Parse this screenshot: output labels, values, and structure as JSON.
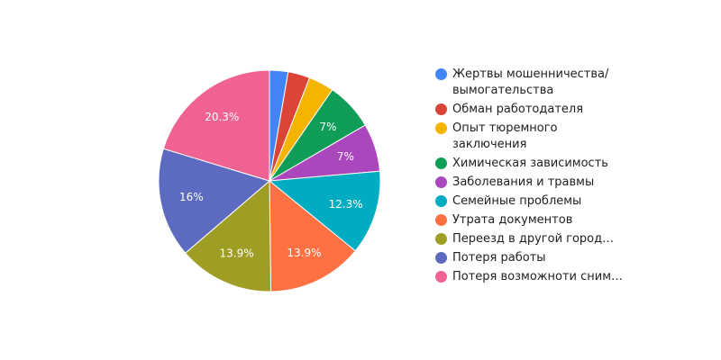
{
  "chart_data": {
    "type": "pie",
    "slices": [
      {
        "label": "Жертвы мошенничества/\nвымогательства",
        "value": 2.7,
        "color": "#4285F4",
        "display": ""
      },
      {
        "label": "Обман работодателя",
        "value": 3.2,
        "color": "#DB4437",
        "display": ""
      },
      {
        "label": "Опыт тюремного\nзаключения",
        "value": 3.7,
        "color": "#F4B400",
        "display": ""
      },
      {
        "label": "Химическая зависимость",
        "value": 7,
        "color": "#0F9D58",
        "display": "7%"
      },
      {
        "label": "Заболевания и травмы",
        "value": 7,
        "color": "#AB47BC",
        "display": "7%"
      },
      {
        "label": "Семейные проблемы",
        "value": 12.3,
        "color": "#00ACC1",
        "display": "12.3%"
      },
      {
        "label": "Утрата документов",
        "value": 13.9,
        "color": "#FF7043",
        "display": "13.9%"
      },
      {
        "label": "Переезд в другой город…",
        "value": 13.9,
        "color": "#9E9D24",
        "display": "13.9%"
      },
      {
        "label": "Потеря работы",
        "value": 16,
        "color": "#5C6BC0",
        "display": "16%"
      },
      {
        "label": "Потеря возможноти сним…",
        "value": 20.3,
        "color": "#F06292",
        "display": "20.3%"
      }
    ],
    "legend_position": "right"
  }
}
